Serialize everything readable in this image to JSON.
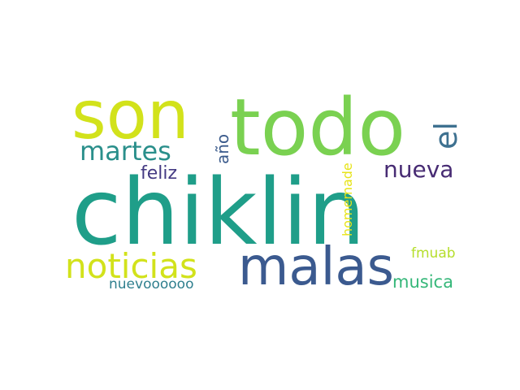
{
  "words": [
    {
      "text": "chiklin",
      "color": "#1f9e89"
    },
    {
      "text": "todo",
      "color": "#7ad151"
    },
    {
      "text": "son",
      "color": "#d2e21b"
    },
    {
      "text": "malas",
      "color": "#3b5a8f"
    },
    {
      "text": "noticias",
      "color": "#d2e21b"
    },
    {
      "text": "martes",
      "color": "#2a8f8b"
    },
    {
      "text": "el",
      "color": "#3e7190"
    },
    {
      "text": "nueva",
      "color": "#472b73"
    },
    {
      "text": "feliz",
      "color": "#443a83"
    },
    {
      "text": "año",
      "color": "#3b5b8c"
    },
    {
      "text": "homemade",
      "color": "#e7e419"
    },
    {
      "text": "fmuab",
      "color": "#b5de2b"
    },
    {
      "text": "musica",
      "color": "#35b779"
    },
    {
      "text": "nuevoooooo",
      "color": "#2f7f8e"
    }
  ]
}
